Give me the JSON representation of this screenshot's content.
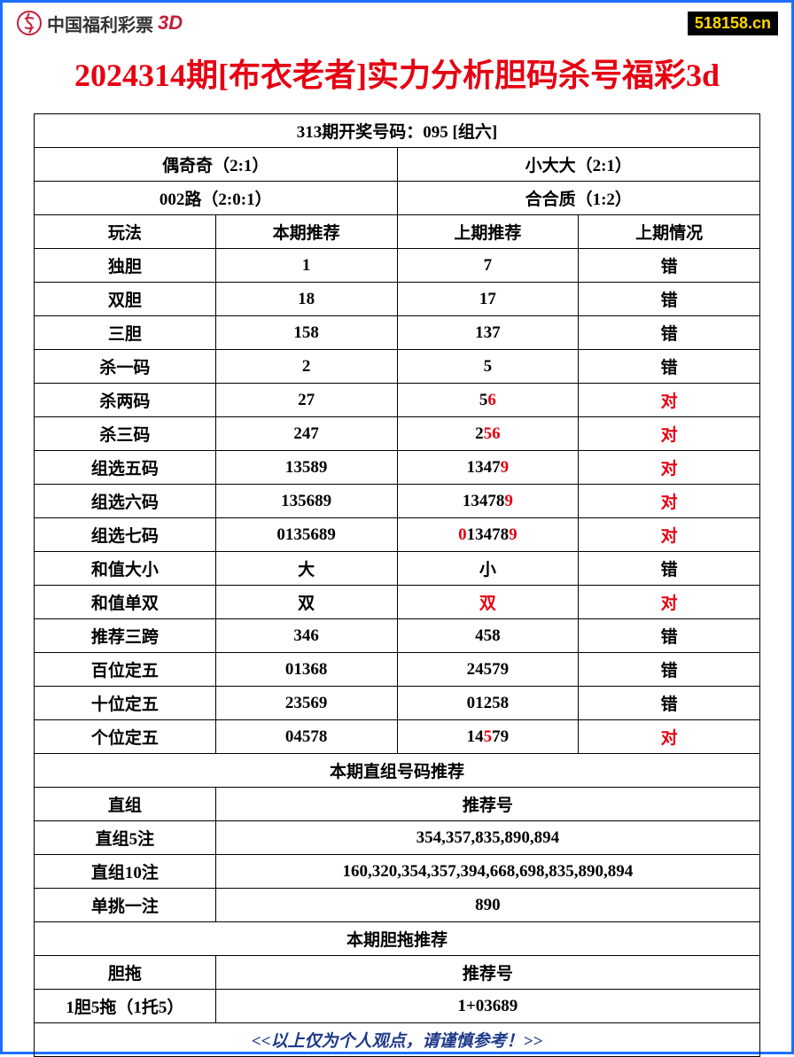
{
  "header": {
    "logo_text": "中国福利彩票",
    "logo_3d": "3D",
    "site_badge": "518158.cn"
  },
  "main_title": "2024314期[布衣老者]实力分析胆码杀号福彩3d",
  "draw_header": "313期开奖号码：095 [组六]",
  "analysis_row1": {
    "left": "偶奇奇（2:1）",
    "right": "小大大（2:1）"
  },
  "analysis_row2": {
    "left": "002路（2:0:1）",
    "right": "合合质（1:2）"
  },
  "columns": {
    "c1": "玩法",
    "c2": "本期推荐",
    "c3": "上期推荐",
    "c4": "上期情况"
  },
  "rows": [
    {
      "play": "独胆",
      "current": "1",
      "prev": "7",
      "prev_hl": [],
      "result": "错",
      "result_red": false
    },
    {
      "play": "双胆",
      "current": "18",
      "prev": "17",
      "prev_hl": [],
      "result": "错",
      "result_red": false
    },
    {
      "play": "三胆",
      "current": "158",
      "prev": "137",
      "prev_hl": [],
      "result": "错",
      "result_red": false
    },
    {
      "play": "杀一码",
      "current": "2",
      "prev": "5",
      "prev_hl": [],
      "result": "错",
      "result_red": false
    },
    {
      "play": "杀两码",
      "current": "27",
      "prev": "56",
      "prev_hl": [
        1
      ],
      "result": "对",
      "result_red": true
    },
    {
      "play": "杀三码",
      "current": "247",
      "prev": "256",
      "prev_hl": [
        1,
        2
      ],
      "result": "对",
      "result_red": true
    },
    {
      "play": "组选五码",
      "current": "13589",
      "prev": "13479",
      "prev_hl": [
        4
      ],
      "result": "对",
      "result_red": true
    },
    {
      "play": "组选六码",
      "current": "135689",
      "prev": "134789",
      "prev_hl": [
        5
      ],
      "result": "对",
      "result_red": true
    },
    {
      "play": "组选七码",
      "current": "0135689",
      "prev": "0134789",
      "prev_hl": [
        0,
        6
      ],
      "result": "对",
      "result_red": true
    },
    {
      "play": "和值大小",
      "current": "大",
      "prev": "小",
      "prev_hl": [],
      "result": "错",
      "result_red": false
    },
    {
      "play": "和值单双",
      "current": "双",
      "prev": "双",
      "prev_hl": [
        0
      ],
      "result": "对",
      "result_red": true
    },
    {
      "play": "推荐三跨",
      "current": "346",
      "prev": "458",
      "prev_hl": [],
      "result": "错",
      "result_red": false
    },
    {
      "play": "百位定五",
      "current": "01368",
      "prev": "24579",
      "prev_hl": [],
      "result": "错",
      "result_red": false
    },
    {
      "play": "十位定五",
      "current": "23569",
      "prev": "01258",
      "prev_hl": [],
      "result": "错",
      "result_red": false
    },
    {
      "play": "个位定五",
      "current": "04578",
      "prev": "14579",
      "prev_hl": [
        2
      ],
      "result": "对",
      "result_red": true
    }
  ],
  "section_direct_title": "本期直组号码推荐",
  "direct_header": {
    "left": "直组",
    "right": "推荐号"
  },
  "direct_rows": [
    {
      "label": "直组5注",
      "value": "354,357,835,890,894"
    },
    {
      "label": "直组10注",
      "value": "160,320,354,357,394,668,698,835,890,894"
    },
    {
      "label": "单挑一注",
      "value": "890"
    }
  ],
  "section_dantuo_title": "本期胆拖推荐",
  "dantuo_header": {
    "left": "胆拖",
    "right": "推荐号"
  },
  "dantuo_rows": [
    {
      "label": "1胆5拖（1托5）",
      "value": "1+03689"
    }
  ],
  "footer": "<<以上仅为个人观点，请谨慎参考！>>",
  "colors": {
    "border": "#1e6fff",
    "title_red": "#e60012",
    "footer_blue": "#1e3a8a",
    "badge_bg": "#000000",
    "badge_text": "#ffd700"
  }
}
